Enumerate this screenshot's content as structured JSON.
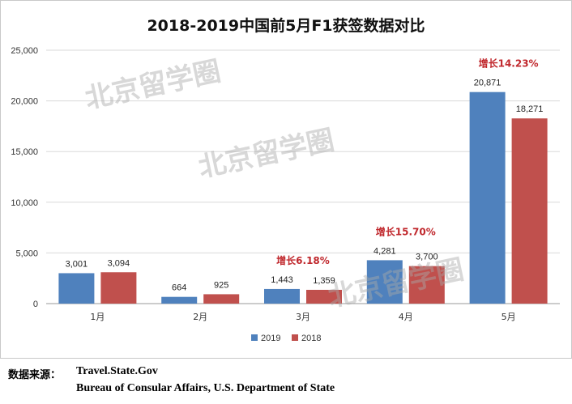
{
  "chart_data": {
    "type": "bar",
    "title": "2018-2019中国前5月F1获签数据对比",
    "categories": [
      "1月",
      "2月",
      "3月",
      "4月",
      "5月"
    ],
    "series": [
      {
        "name": "2019",
        "color": "#4f81bd",
        "values": [
          3001,
          664,
          1443,
          4281,
          20871
        ]
      },
      {
        "name": "2018",
        "color": "#c0504d",
        "values": [
          3094,
          925,
          1359,
          3700,
          18271
        ]
      }
    ],
    "data_labels": [
      [
        "3,001",
        "664",
        "1,443",
        "4,281",
        "20,871"
      ],
      [
        "3,094",
        "925",
        "1,359",
        "3,700",
        "18,271"
      ]
    ],
    "y_ticks": [
      "0",
      "5,000",
      "10,000",
      "15,000",
      "20,000",
      "25,000"
    ],
    "ylim": [
      0,
      25000
    ],
    "grid": true,
    "legend_position": "bottom",
    "annotations": [
      {
        "category": "3月",
        "text": "增长6.18%"
      },
      {
        "category": "4月",
        "text": "增长15.70%"
      },
      {
        "category": "5月",
        "text": "增长14.23%"
      }
    ],
    "annotation_color": "#c0282d",
    "xlabel": "",
    "ylabel": ""
  },
  "watermark": "北京留学圈",
  "source": {
    "label": "数据来源：",
    "line1": "Travel.State.Gov",
    "line2": "Bureau of Consular Affairs, U.S. Department of State"
  }
}
